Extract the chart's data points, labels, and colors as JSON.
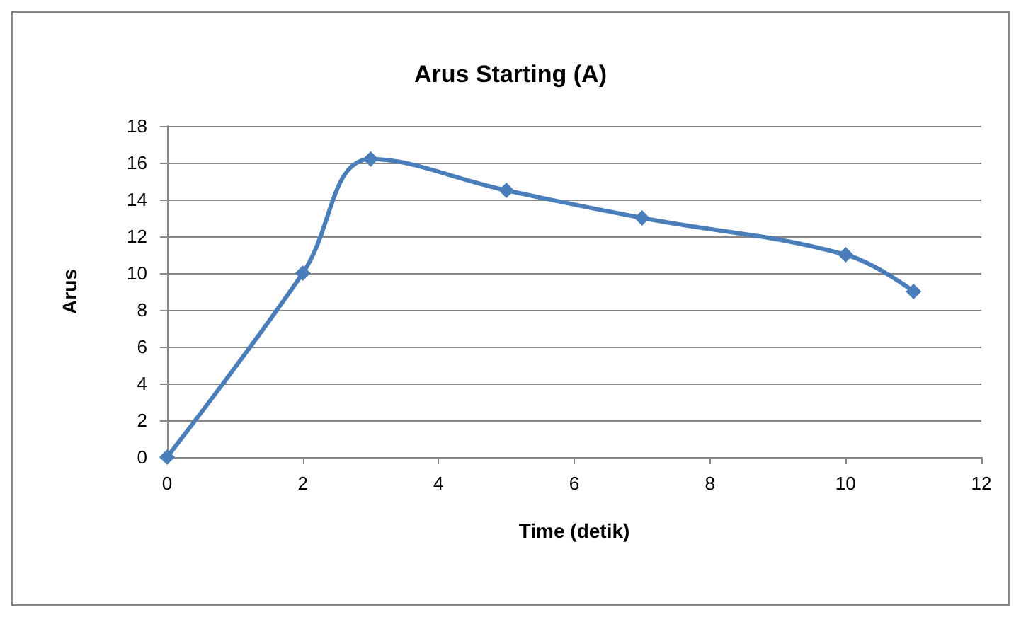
{
  "chart_data": {
    "type": "line",
    "title": "Arus Starting (A)",
    "xlabel": "Time (detik)",
    "ylabel": "Arus",
    "x": [
      0,
      2,
      3,
      5,
      7,
      10,
      11
    ],
    "series": [
      {
        "color": "#4a7ebb",
        "values": [
          0,
          10,
          16.2,
          14.5,
          13,
          11,
          9
        ]
      }
    ],
    "xlim": [
      0,
      12
    ],
    "xticks": [
      0,
      2,
      4,
      6,
      8,
      10,
      12
    ],
    "ylim": [
      0,
      18
    ],
    "yticks": [
      0,
      2,
      4,
      6,
      8,
      10,
      12,
      14,
      16,
      18
    ],
    "grid": "y",
    "marker": "diamond",
    "line_style": "solid"
  }
}
